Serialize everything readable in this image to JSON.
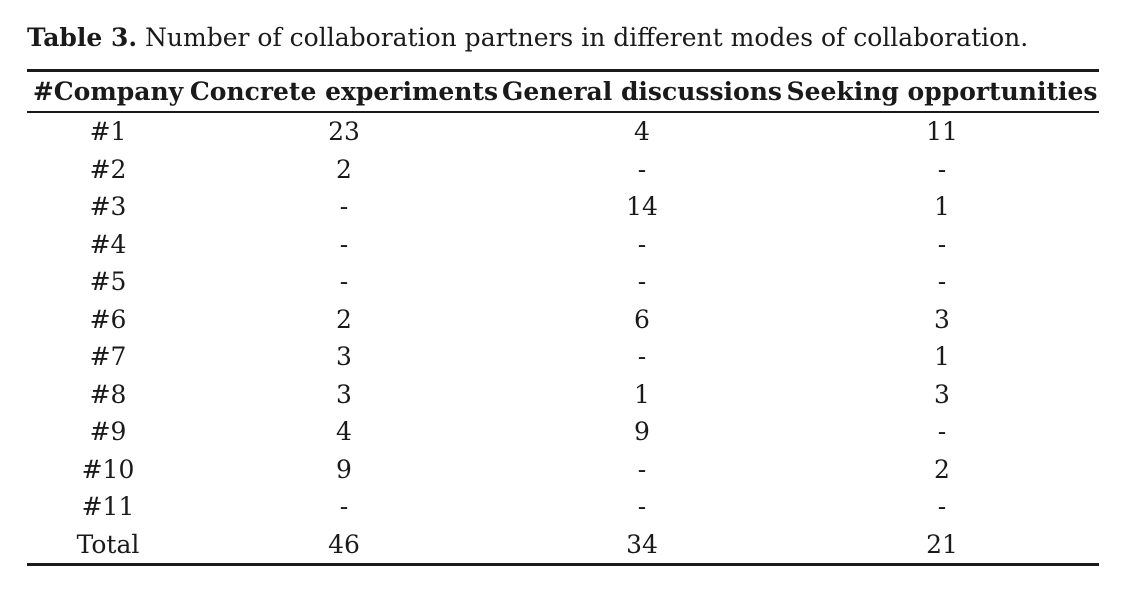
{
  "caption": {
    "label": "Table 3.",
    "text": " Number of collaboration partners in different modes of collaboration."
  },
  "table": {
    "headers": [
      "#Company",
      "Concrete experiments",
      "General discussions",
      "Seeking opportunities"
    ],
    "rows": [
      [
        "#1",
        "23",
        "4",
        "11"
      ],
      [
        "#2",
        "2",
        "-",
        "-"
      ],
      [
        "#3",
        "-",
        "14",
        "1"
      ],
      [
        "#4",
        "-",
        "-",
        "-"
      ],
      [
        "#5",
        "-",
        "-",
        "-"
      ],
      [
        "#6",
        "2",
        "6",
        "3"
      ],
      [
        "#7",
        "3",
        "-",
        "1"
      ],
      [
        "#8",
        "3",
        "1",
        "3"
      ],
      [
        "#9",
        "4",
        "9",
        "-"
      ],
      [
        "#10",
        "9",
        "-",
        "2"
      ],
      [
        "#11",
        "-",
        "-",
        "-"
      ]
    ],
    "total": [
      "Total",
      "46",
      "34",
      "21"
    ]
  }
}
